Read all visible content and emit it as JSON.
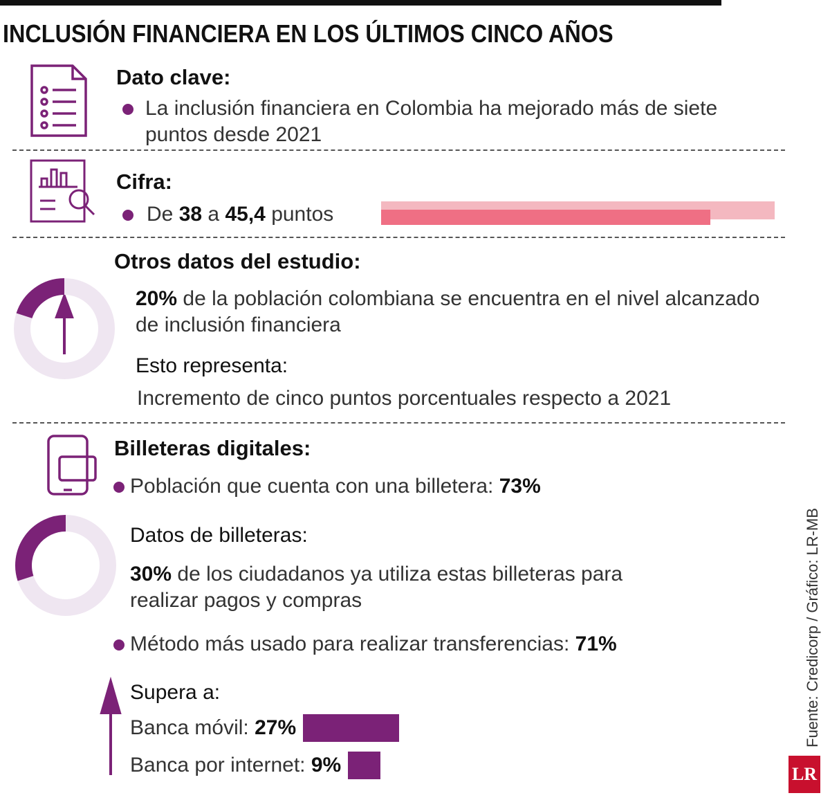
{
  "title": "INCLUSIÓN FINANCIERA EN LOS ÚLTIMOS CINCO AÑOS",
  "dato_clave": {
    "heading": "Dato clave:",
    "text": "La inclusión financiera en Colombia ha mejorado más de siete puntos desde 2021"
  },
  "cifra": {
    "heading": "Cifra:",
    "prefix": "De",
    "from": 38,
    "connector": "a",
    "to": {
      "value": 45.4,
      "label": "45,4"
    },
    "suffix": "puntos"
  },
  "otros": {
    "heading": "Otros datos del estudio:",
    "share": {
      "value": 20,
      "label": "20%"
    },
    "share_text": "de la población colombiana se encuentra en el nivel alcanzado de inclusión financiera",
    "sub_heading": "Esto representa:",
    "sub_text": "Incremento de cinco puntos porcentuales respecto a 2021"
  },
  "billeteras": {
    "heading": "Billeteras digitales:",
    "owners_text": "Población que cuenta con una billetera:",
    "owners": {
      "value": 73,
      "label": "73%"
    },
    "datos_heading": "Datos de billeteras:",
    "usage": {
      "value": 30,
      "label": "30%"
    },
    "usage_text": "de los ciudadanos ya utiliza estas billeteras para realizar pagos y compras",
    "transfer_text": "Método más usado para realizar transferencias:",
    "transfer": {
      "value": 71,
      "label": "71%"
    },
    "supera_heading": "Supera a:",
    "comparisons": [
      {
        "label": "Banca móvil:",
        "value": {
          "value": 27,
          "label": "27%"
        }
      },
      {
        "label": "Banca por internet:",
        "value": {
          "value": 9,
          "label": "9%"
        }
      }
    ]
  },
  "source": "Fuente: Credicorp  / Gráfico: LR-MB",
  "logo": "LR"
}
